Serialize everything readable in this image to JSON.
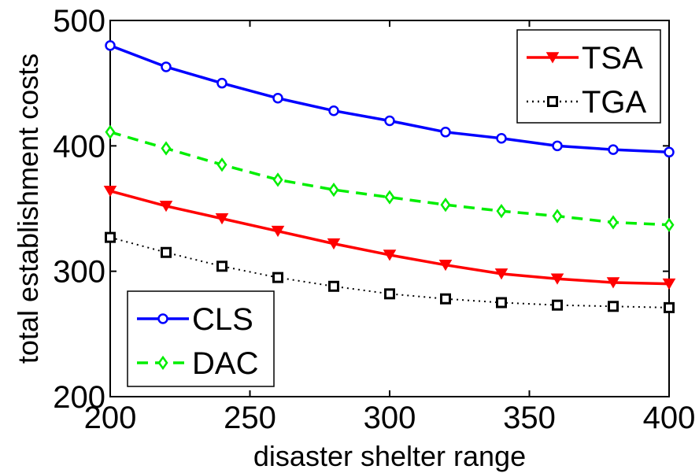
{
  "chart_data": {
    "type": "line",
    "xlabel": "disaster shelter range",
    "ylabel": "total establishment costs",
    "xlim": [
      200,
      400
    ],
    "ylim": [
      200,
      500
    ],
    "xticks": [
      200,
      250,
      300,
      350,
      400
    ],
    "yticks": [
      200,
      300,
      400,
      500
    ],
    "grid": false,
    "x": [
      200,
      220,
      240,
      260,
      280,
      300,
      320,
      340,
      360,
      380,
      400
    ],
    "series": [
      {
        "name": "CLS",
        "color": "#0000ff",
        "marker": "circle",
        "dash": "solid",
        "values": [
          480,
          463,
          450,
          438,
          428,
          420,
          411,
          406,
          400,
          397,
          395
        ]
      },
      {
        "name": "DAC",
        "color": "#00ee00",
        "marker": "diamond",
        "dash": "dashed",
        "values": [
          411,
          398,
          385,
          373,
          365,
          359,
          353,
          348,
          344,
          339,
          337
        ]
      },
      {
        "name": "TSA",
        "color": "#ff0000",
        "marker": "triangle-down",
        "dash": "solid",
        "values": [
          364,
          352,
          342,
          332,
          322,
          313,
          305,
          298,
          294,
          291,
          290
        ]
      },
      {
        "name": "TGA",
        "color": "#000000",
        "marker": "square",
        "dash": "dotted",
        "values": [
          327,
          315,
          304,
          295,
          288,
          282,
          278,
          275,
          273,
          272,
          271
        ]
      }
    ],
    "legends": [
      {
        "placement": "top-right",
        "entries": [
          "TSA",
          "TGA"
        ]
      },
      {
        "placement": "bottom-left",
        "entries": [
          "CLS",
          "DAC"
        ]
      }
    ]
  }
}
